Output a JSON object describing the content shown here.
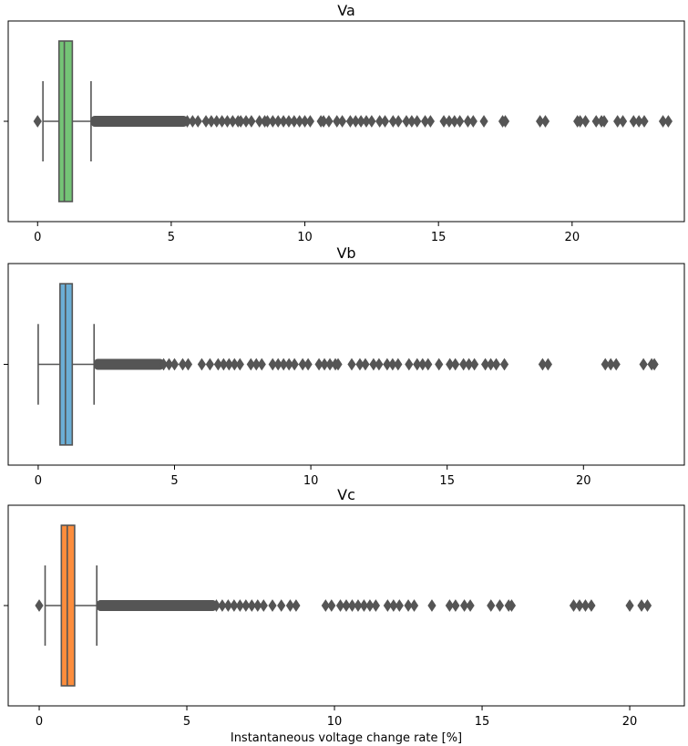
{
  "chart_data": [
    {
      "type": "box",
      "title": "Va",
      "xlabel": "",
      "xlim": [
        -1.1,
        24.2
      ],
      "xticks": [
        0,
        5,
        10,
        15,
        20
      ],
      "xtick_labels": [
        "0",
        "5",
        "10",
        "15",
        "20"
      ],
      "box_color": "#74c476",
      "whisker_low": 0.2,
      "q1": 0.8,
      "median": 1.0,
      "q3": 1.3,
      "whisker_high": 2.0,
      "outliers_low": [
        0.0
      ],
      "outlier_band": [
        2.0,
        5.6
      ],
      "outliers_high": [
        5.8,
        6.0,
        6.3,
        6.5,
        6.7,
        6.9,
        7.1,
        7.3,
        7.5,
        7.6,
        7.8,
        8.0,
        8.3,
        8.5,
        8.6,
        8.8,
        9.0,
        9.2,
        9.4,
        9.6,
        9.8,
        10.0,
        10.2,
        10.6,
        10.7,
        10.9,
        11.2,
        11.4,
        11.7,
        11.9,
        12.1,
        12.3,
        12.5,
        12.8,
        13.0,
        13.3,
        13.5,
        13.8,
        14.0,
        14.2,
        14.5,
        14.7,
        15.2,
        15.4,
        15.6,
        15.8,
        16.1,
        16.3,
        16.7,
        17.4,
        17.5,
        18.8,
        19.0,
        20.2,
        20.3,
        20.5,
        20.9,
        21.1,
        21.2,
        21.7,
        21.9,
        22.3,
        22.5,
        22.7,
        23.4,
        23.6
      ],
      "vertical_ticks": [
        "",
        ""
      ]
    },
    {
      "type": "box",
      "title": "Vb",
      "xlabel": "",
      "xlim": [
        -1.1,
        23.7
      ],
      "xticks": [
        0,
        5,
        10,
        15,
        20
      ],
      "xtick_labels": [
        "0",
        "5",
        "10",
        "15",
        "20"
      ],
      "box_color": "#6baed6",
      "whisker_low": 0.0,
      "q1": 0.8,
      "median": 1.0,
      "q3": 1.25,
      "whisker_high": 2.05,
      "outliers_low": [],
      "outlier_band": [
        2.05,
        4.6
      ],
      "outliers_high": [
        4.8,
        5.0,
        5.3,
        5.5,
        6.0,
        6.3,
        6.6,
        6.8,
        7.0,
        7.2,
        7.4,
        7.8,
        8.0,
        8.2,
        8.6,
        8.8,
        9.0,
        9.2,
        9.4,
        9.7,
        9.9,
        10.3,
        10.5,
        10.7,
        10.9,
        11.0,
        11.5,
        11.8,
        12.0,
        12.3,
        12.5,
        12.8,
        13.0,
        13.2,
        13.6,
        13.9,
        14.1,
        14.3,
        14.7,
        15.1,
        15.3,
        15.6,
        15.8,
        16.0,
        16.4,
        16.6,
        16.8,
        17.1,
        18.5,
        18.7,
        20.8,
        21.0,
        21.2,
        22.2,
        22.5,
        22.6
      ],
      "vertical_ticks": [
        "",
        ""
      ]
    },
    {
      "type": "box",
      "title": "Vc",
      "xlabel": "Instantaneous voltage change rate [%]",
      "xlim": [
        -1.05,
        21.85
      ],
      "xticks": [
        0,
        5,
        10,
        15,
        20
      ],
      "xtick_labels": [
        "0",
        "5",
        "10",
        "15",
        "20"
      ],
      "box_color": "#fd8d3c",
      "whisker_low": 0.2,
      "q1": 0.75,
      "median": 0.95,
      "q3": 1.2,
      "whisker_high": 1.95,
      "outliers_low": [
        0.0
      ],
      "outlier_band": [
        1.95,
        6.0
      ],
      "outliers_high": [
        6.2,
        6.4,
        6.6,
        6.8,
        7.0,
        7.2,
        7.4,
        7.6,
        7.9,
        8.2,
        8.5,
        8.7,
        9.7,
        9.9,
        10.2,
        10.4,
        10.6,
        10.8,
        11.0,
        11.2,
        11.4,
        11.8,
        12.0,
        12.2,
        12.5,
        12.7,
        13.3,
        13.9,
        14.1,
        14.4,
        14.6,
        15.3,
        15.6,
        15.9,
        16.0,
        18.1,
        18.3,
        18.5,
        18.7,
        20.0,
        20.4,
        20.6
      ],
      "vertical_ticks": [
        "",
        ""
      ]
    }
  ],
  "colors": {
    "line": "#555555",
    "outlier": "#555555",
    "axes": "#000000"
  }
}
